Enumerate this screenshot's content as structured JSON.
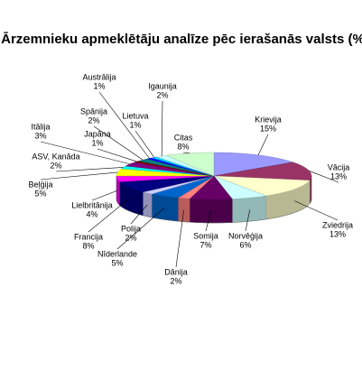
{
  "chart_data": {
    "type": "pie3d",
    "title": "Ārzemnieku apmeklētāju analīze pēc ierašanās valsts (%)",
    "categories": [
      "Krievija",
      "Vācija",
      "Zviedrija",
      "Norvēģija",
      "Somija",
      "Dānija",
      "Nīderlande",
      "Polija",
      "Francija",
      "Lielbritānija",
      "Beļģija",
      "ASV, Kanāda",
      "Itālija",
      "Japāna",
      "Spānija",
      "Austrālija",
      "Lietuva",
      "Igaunija",
      "Citas"
    ],
    "values": [
      15,
      13,
      13,
      6,
      7,
      2,
      5,
      2,
      8,
      4,
      5,
      2,
      3,
      1,
      2,
      1,
      1,
      2,
      8
    ],
    "value_labels": [
      "15%",
      "13%",
      "13%",
      "6%",
      "7%",
      "2%",
      "5%",
      "2%",
      "8%",
      "4%",
      "5%",
      "2%",
      "3%",
      "1%",
      "2%",
      "1%",
      "1%",
      "2%",
      "8%"
    ],
    "colors": [
      "#9999ff",
      "#993366",
      "#ffffcc",
      "#ccffff",
      "#660066",
      "#ff8080",
      "#0066cc",
      "#ccccff",
      "#000080",
      "#ff00ff",
      "#ffff00",
      "#00ffff",
      "#800080",
      "#800000",
      "#008080",
      "#0000ff",
      "#00ccff",
      "#ccffff",
      "#ccffcc"
    ]
  }
}
